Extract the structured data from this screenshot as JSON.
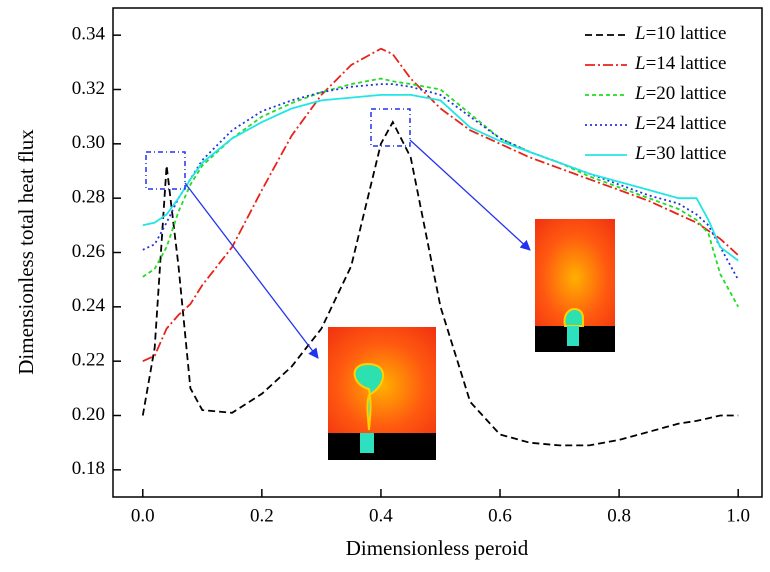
{
  "chart_data": {
    "type": "line",
    "xlabel": "Dimensionless peroid",
    "ylabel": "Dimensionless total heat flux",
    "x": [
      0,
      0.02,
      0.04,
      0.06,
      0.08,
      0.1,
      0.15,
      0.2,
      0.25,
      0.3,
      0.35,
      0.4,
      0.42,
      0.45,
      0.5,
      0.55,
      0.6,
      0.65,
      0.7,
      0.75,
      0.8,
      0.85,
      0.9,
      0.93,
      0.95,
      0.97,
      1.0
    ],
    "series": [
      {
        "name": "L=10 lattice",
        "color": "#000000",
        "values": [
          0.2,
          0.225,
          0.292,
          0.255,
          0.21,
          0.202,
          0.201,
          0.208,
          0.218,
          0.232,
          0.255,
          0.3,
          0.308,
          0.295,
          0.24,
          0.205,
          0.193,
          0.19,
          0.189,
          0.189,
          0.191,
          0.194,
          0.197,
          0.198,
          0.199,
          0.2,
          0.2
        ]
      },
      {
        "name": "L=14 lattice",
        "color": "#e8231b",
        "values": [
          0.22,
          0.222,
          0.232,
          0.237,
          0.241,
          0.248,
          0.262,
          0.283,
          0.303,
          0.318,
          0.329,
          0.335,
          0.333,
          0.324,
          0.313,
          0.305,
          0.3,
          0.295,
          0.291,
          0.287,
          0.283,
          0.279,
          0.274,
          0.271,
          0.268,
          0.265,
          0.259
        ]
      },
      {
        "name": "L=20 lattice",
        "color": "#22dd22",
        "values": [
          0.251,
          0.254,
          0.262,
          0.275,
          0.285,
          0.292,
          0.302,
          0.31,
          0.315,
          0.319,
          0.322,
          0.324,
          0.323,
          0.322,
          0.32,
          0.311,
          0.302,
          0.297,
          0.293,
          0.288,
          0.284,
          0.28,
          0.276,
          0.272,
          0.267,
          0.252,
          0.24
        ]
      },
      {
        "name": "L=24 lattice",
        "color": "#2233dd",
        "values": [
          0.261,
          0.263,
          0.271,
          0.28,
          0.287,
          0.294,
          0.305,
          0.312,
          0.316,
          0.319,
          0.321,
          0.322,
          0.322,
          0.321,
          0.318,
          0.31,
          0.302,
          0.297,
          0.293,
          0.289,
          0.285,
          0.281,
          0.278,
          0.274,
          0.27,
          0.262,
          0.25
        ]
      },
      {
        "name": "L=30 lattice",
        "color": "#22e5e5",
        "values": [
          0.27,
          0.271,
          0.274,
          0.28,
          0.287,
          0.293,
          0.302,
          0.308,
          0.313,
          0.316,
          0.317,
          0.318,
          0.318,
          0.318,
          0.316,
          0.306,
          0.301,
          0.297,
          0.293,
          0.289,
          0.286,
          0.283,
          0.28,
          0.28,
          0.272,
          0.262,
          0.257
        ]
      }
    ],
    "xlim": [
      -0.05,
      1.04
    ],
    "ylim": [
      0.17,
      0.35
    ],
    "xticks": [
      {
        "value": 0,
        "label": "0.0"
      },
      0.2,
      0.4,
      0.6,
      0.8,
      {
        "value": 1,
        "label": "1.0"
      }
    ],
    "yticks": [
      0.18,
      {
        "value": 0.2,
        "label": "0.20"
      },
      0.22,
      0.24,
      0.26,
      0.28,
      {
        "value": 0.3,
        "label": "0.30"
      },
      0.32,
      0.34
    ],
    "legend": "upper right",
    "grid": false
  }
}
